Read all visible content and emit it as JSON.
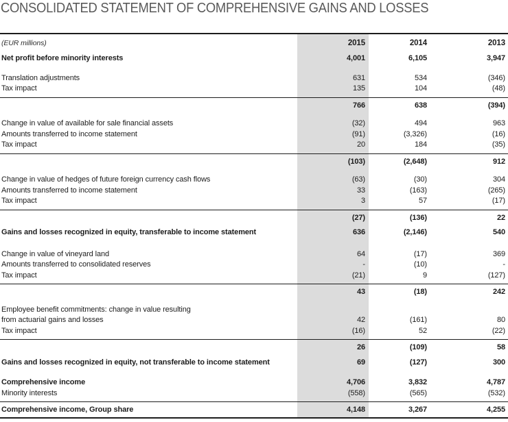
{
  "title": "CONSOLIDATED STATEMENT OF COMPREHENSIVE GAINS AND LOSSES",
  "colors": {
    "title_text": "#595959",
    "body_text": "#1c1c1c",
    "highlight_band": "#dcdcdc",
    "rule": "#1c1c1c"
  },
  "table": {
    "unit_label": "(EUR millions)",
    "columns": [
      "2015",
      "2014",
      "2013"
    ],
    "rows": [
      {
        "label": "Net profit before minority interests",
        "c2015": "4,001",
        "c2014": "6,105",
        "c2013": "3,947",
        "bold": true,
        "first": true
      },
      {
        "spacer": true,
        "h": 13
      },
      {
        "label": "Translation adjustments",
        "c2015": "631",
        "c2014": "534",
        "c2013": "(346)"
      },
      {
        "label": "Tax impact",
        "c2015": "135",
        "c2014": "104",
        "c2013": "(48)"
      },
      {
        "label": "",
        "c2015": "766",
        "c2014": "638",
        "c2013": "(394)",
        "bold": true,
        "rule": true
      },
      {
        "spacer": true,
        "h": 11
      },
      {
        "label": "Change in value of available for sale financial assets",
        "c2015": "(32)",
        "c2014": "494",
        "c2013": "963"
      },
      {
        "label": "Amounts transferred to income statement",
        "c2015": "(91)",
        "c2014": "(3,326)",
        "c2013": "(16)"
      },
      {
        "label": "Tax impact",
        "c2015": "20",
        "c2014": "184",
        "c2013": "(35)"
      },
      {
        "label": "",
        "c2015": "(103)",
        "c2014": "(2,648)",
        "c2013": "912",
        "bold": true,
        "rule": true
      },
      {
        "spacer": true,
        "h": 11
      },
      {
        "label": "Change in value of hedges of future foreign currency cash flows",
        "c2015": "(63)",
        "c2014": "(30)",
        "c2013": "304"
      },
      {
        "label": "Amounts transferred to income statement",
        "c2015": "33",
        "c2014": "(163)",
        "c2013": "(265)"
      },
      {
        "label": "Tax impact",
        "c2015": "3",
        "c2014": "57",
        "c2013": "(17)"
      },
      {
        "label": "",
        "c2015": "(27)",
        "c2014": "(136)",
        "c2013": "22",
        "bold": true,
        "rule": true
      },
      {
        "spacer": true,
        "h": 6
      },
      {
        "label": "Gains and losses recognized in equity, transferable to income statement",
        "c2015": "636",
        "c2014": "(2,146)",
        "c2013": "540",
        "bold": true
      },
      {
        "spacer": true,
        "h": 16
      },
      {
        "label": "Change in value of vineyard land",
        "c2015": "64",
        "c2014": "(17)",
        "c2013": "369"
      },
      {
        "label": "Amounts transferred to consolidated reserves",
        "c2015": "-",
        "c2014": "(10)",
        "c2013": "-"
      },
      {
        "label": "Tax impact",
        "c2015": "(21)",
        "c2014": "9",
        "c2013": "(127)"
      },
      {
        "label": "",
        "c2015": "43",
        "c2014": "(18)",
        "c2013": "242",
        "bold": true,
        "rule": true
      },
      {
        "spacer": true,
        "h": 10
      },
      {
        "label": "Employee benefit commitments: change in value resulting",
        "c2015": "",
        "c2014": "",
        "c2013": ""
      },
      {
        "label": "from actuarial gains and losses",
        "c2015": "42",
        "c2014": "(161)",
        "c2013": "80"
      },
      {
        "label": "Tax impact",
        "c2015": "(16)",
        "c2014": "52",
        "c2013": "(22)"
      },
      {
        "label": "",
        "c2015": "26",
        "c2014": "(109)",
        "c2013": "58",
        "bold": true,
        "rule": true
      },
      {
        "spacer": true,
        "h": 6
      },
      {
        "label": "Gains and losses recognized in equity, not transferable to income statement",
        "c2015": "69",
        "c2014": "(127)",
        "c2013": "300",
        "bold": true
      },
      {
        "spacer": true,
        "h": 14
      },
      {
        "label": "Comprehensive income",
        "c2015": "4,706",
        "c2014": "3,832",
        "c2013": "4,787",
        "bold": true
      },
      {
        "label": "Minority interests",
        "c2015": "(558)",
        "c2014": "(565)",
        "c2013": "(532)"
      },
      {
        "label": "Comprehensive income, Group share",
        "c2015": "4,148",
        "c2014": "3,267",
        "c2013": "4,255",
        "bold": true,
        "rule": true
      }
    ]
  }
}
